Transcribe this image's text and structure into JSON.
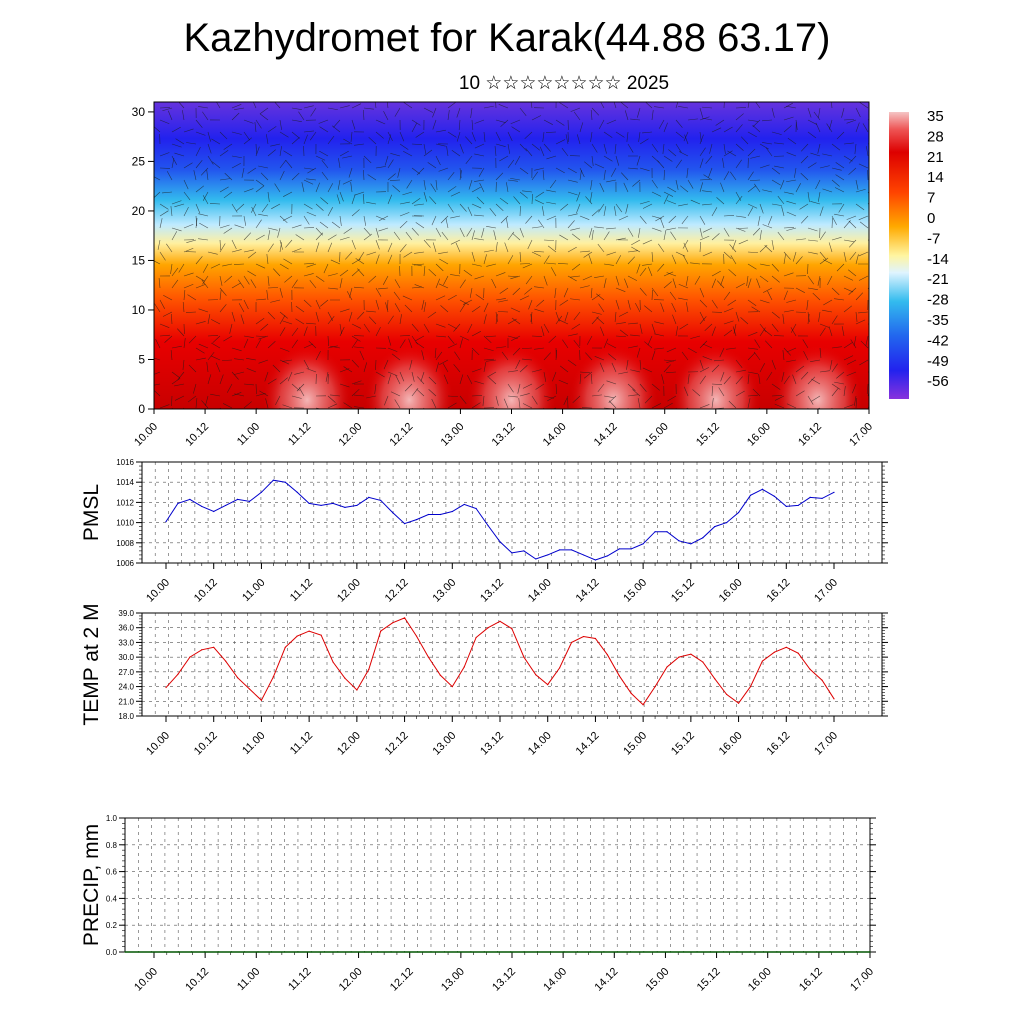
{
  "title": "Kazhydromet for Karak(44.88 63.17)",
  "subtitle": "10 ☆☆☆☆☆☆☆☆ 2025",
  "chart_data": [
    {
      "type": "heatmap",
      "title": "",
      "xlabel": "",
      "ylabel": "",
      "x_ticks": [
        "10.00",
        "10.12",
        "11.00",
        "11.12",
        "12.00",
        "12.12",
        "13.00",
        "13.12",
        "14.00",
        "14.12",
        "15.00",
        "15.12",
        "16.00",
        "16.12",
        "17.00"
      ],
      "y_ticks": [
        0,
        5,
        10,
        15,
        20,
        25,
        30
      ],
      "ylim": [
        0,
        31
      ],
      "colorbar_levels": [
        35,
        28,
        21,
        14,
        7,
        0,
        -7,
        -14,
        -21,
        -28,
        -35,
        -42,
        -49,
        -56
      ],
      "colorbar_colors": {
        "warm_top": "#f2b8b8",
        "red": "#dd0000",
        "orange": "#ff8800",
        "yellow": "#fff5a0",
        "cyan": "#33bbee",
        "blue": "#2222ee",
        "violet": "#8833dd"
      },
      "overlay": "wind vectors"
    },
    {
      "type": "line",
      "ylabel": "PMSL",
      "x_ticks": [
        "10.00",
        "10.12",
        "11.00",
        "11.12",
        "12.00",
        "12.12",
        "13.00",
        "13.12",
        "14.00",
        "14.12",
        "15.00",
        "15.12",
        "16.00",
        "16.12",
        "17.00"
      ],
      "y_ticks": [
        "1006",
        "1008",
        "1010",
        "1012",
        "1014",
        "1016"
      ],
      "ylim": [
        1006,
        1016
      ],
      "color": "#0000cc",
      "values": [
        1010.1,
        1011.9,
        1012.3,
        1011.6,
        1011.1,
        1011.7,
        1012.3,
        1012.1,
        1013.0,
        1014.2,
        1014.0,
        1013.0,
        1011.9,
        1011.7,
        1011.9,
        1011.5,
        1011.7,
        1012.5,
        1012.2,
        1011.0,
        1009.9,
        1010.3,
        1010.8,
        1010.8,
        1011.1,
        1011.8,
        1011.4,
        1009.7,
        1008.1,
        1007.0,
        1007.2,
        1006.4,
        1006.8,
        1007.3,
        1007.3,
        1006.8,
        1006.3,
        1006.7,
        1007.4,
        1007.4,
        1007.9,
        1009.1,
        1009.1,
        1008.2,
        1007.9,
        1008.5,
        1009.6,
        1010.0,
        1011.0,
        1012.7,
        1013.3,
        1012.6,
        1011.6,
        1011.7,
        1012.5,
        1012.4,
        1013.0
      ]
    },
    {
      "type": "line",
      "ylabel": "TEMP at 2 M",
      "x_ticks": [
        "10.00",
        "10.12",
        "11.00",
        "11.12",
        "12.00",
        "12.12",
        "13.00",
        "13.12",
        "14.00",
        "14.12",
        "15.00",
        "15.12",
        "16.00",
        "16.12",
        "17.00"
      ],
      "y_ticks": [
        "18.0",
        "21.0",
        "24.0",
        "27.0",
        "30.0",
        "33.0",
        "36.0",
        "39.0"
      ],
      "ylim": [
        18,
        39
      ],
      "color": "#dd0000",
      "values": [
        23.8,
        26.5,
        30.0,
        31.5,
        32.0,
        29.2,
        25.8,
        23.5,
        21.2,
        26.0,
        32.0,
        34.3,
        35.3,
        34.5,
        29.0,
        25.7,
        23.3,
        27.5,
        35.3,
        37.0,
        38.0,
        34.3,
        30.0,
        26.3,
        24.0,
        28.0,
        34.0,
        36.0,
        37.3,
        35.8,
        30.0,
        26.4,
        24.4,
        27.8,
        33.0,
        34.2,
        33.8,
        30.5,
        26.2,
        22.6,
        20.3,
        24.0,
        28.0,
        30.0,
        30.6,
        29.0,
        25.6,
        22.4,
        20.6,
        24.0,
        29.2,
        31.0,
        32.0,
        30.8,
        27.5,
        25.3,
        21.5
      ]
    },
    {
      "type": "line",
      "ylabel": "PRECIP, mm",
      "x_ticks": [
        "10.00",
        "10.12",
        "11.00",
        "11.12",
        "12.00",
        "12.12",
        "13.00",
        "13.12",
        "14.00",
        "14.12",
        "15.00",
        "15.12",
        "16.00",
        "16.12",
        "17.00"
      ],
      "y_ticks": [
        "0.0",
        "0.2",
        "0.4",
        "0.6",
        "0.8",
        "1.0"
      ],
      "ylim": [
        0,
        1
      ],
      "color": "#005500",
      "values": [
        0,
        0,
        0,
        0,
        0,
        0,
        0,
        0,
        0,
        0,
        0,
        0,
        0,
        0,
        0,
        0,
        0,
        0,
        0,
        0,
        0,
        0,
        0,
        0,
        0,
        0,
        0,
        0,
        0,
        0,
        0,
        0,
        0,
        0,
        0,
        0,
        0,
        0,
        0,
        0,
        0,
        0,
        0,
        0,
        0,
        0,
        0,
        0,
        0,
        0,
        0,
        0,
        0,
        0,
        0,
        0,
        0
      ]
    }
  ]
}
